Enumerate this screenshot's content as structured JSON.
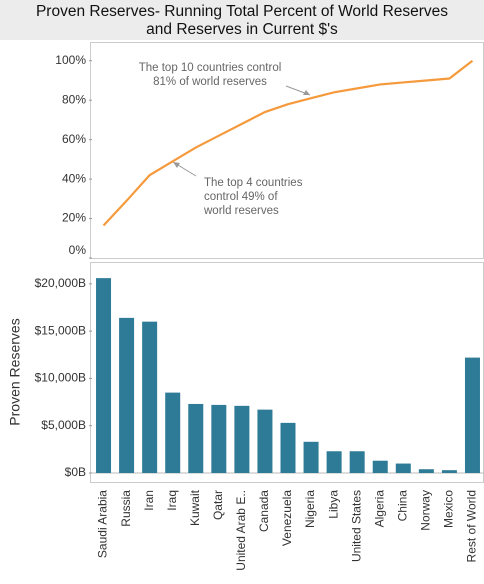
{
  "title": [
    "Proven Reserves- Running Total Percent of World Reserves",
    "and Reserves in Current $'s"
  ],
  "chart_data": [
    {
      "type": "line",
      "color": "#f59a3c",
      "values": [
        16.5,
        29,
        42,
        49,
        56,
        62,
        68,
        74,
        78,
        81,
        84,
        86,
        88,
        89,
        90,
        91,
        100
      ],
      "ylim": [
        0,
        109
      ],
      "yticks": [
        {
          "value": 0,
          "label": "0%"
        },
        {
          "value": 20,
          "label": "20%"
        },
        {
          "value": 40,
          "label": "40%"
        },
        {
          "value": 60,
          "label": "60%"
        },
        {
          "value": 80,
          "label": "80%"
        },
        {
          "value": 100,
          "label": "100%"
        }
      ],
      "annotations": [
        {
          "lines": [
            "The top 10 countries control",
            "81% of world reserves"
          ]
        },
        {
          "lines": [
            "The top 4 countries",
            "control 49% of",
            "world reserves"
          ]
        }
      ]
    },
    {
      "type": "bar",
      "color": "#2e7b97",
      "ylabel": "Proven Reserves",
      "categories": [
        "Saudi Arabia",
        "Russia",
        "Iran",
        "Iraq",
        "Kuwait",
        "Qatar",
        "United Arab E..",
        "Canada",
        "Venezuela",
        "Nigeria",
        "Libya",
        "United States",
        "Algeria",
        "China",
        "Norway",
        "Mexico",
        "Rest of World"
      ],
      "values": [
        20600,
        16400,
        16000,
        8500,
        7300,
        7200,
        7100,
        6700,
        5300,
        3300,
        2300,
        2300,
        1300,
        1000,
        400,
        300,
        12200
      ],
      "ylim": [
        -950,
        22200
      ],
      "yticks": [
        {
          "value": 0,
          "label": "$0B"
        },
        {
          "value": 5000,
          "label": "$5,000B"
        },
        {
          "value": 10000,
          "label": "$10,000B"
        },
        {
          "value": 15000,
          "label": "$15,000B"
        },
        {
          "value": 20000,
          "label": "$20,000B"
        }
      ]
    }
  ]
}
